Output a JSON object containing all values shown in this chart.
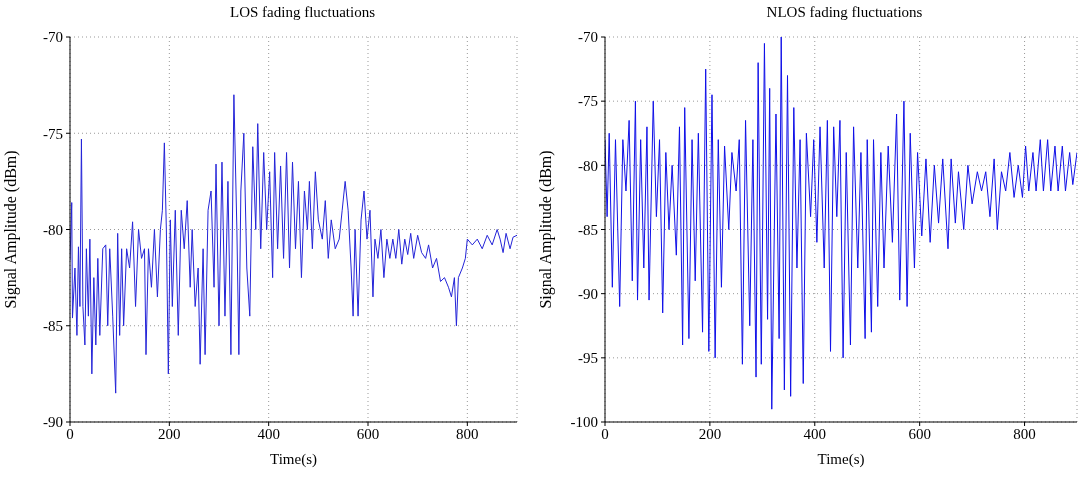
{
  "chart_data": [
    {
      "type": "line",
      "title": "LOS fading fluctuations",
      "xlabel": "Time(s)",
      "ylabel": "Signal Amplitude (dBm)",
      "xlim": [
        0,
        900
      ],
      "ylim": [
        -90,
        -70
      ],
      "xticks": [
        0,
        200,
        400,
        600,
        800
      ],
      "yticks": [
        -90,
        -85,
        -80,
        -75,
        -70
      ],
      "grid": true,
      "x": [
        0,
        3.5,
        5,
        10,
        14,
        17,
        20,
        23,
        26,
        30,
        33,
        37,
        40,
        44,
        48,
        52,
        56,
        60,
        66,
        72,
        76,
        80,
        86,
        92,
        96,
        100,
        104,
        108,
        114,
        120,
        126,
        132,
        138,
        144,
        150,
        153,
        158,
        164,
        170,
        176,
        182,
        186,
        190,
        194,
        198,
        202,
        206,
        212,
        218,
        224,
        230,
        236,
        242,
        246,
        252,
        258,
        262,
        268,
        272,
        278,
        284,
        290,
        294,
        300,
        306,
        312,
        318,
        324,
        330,
        336,
        340,
        344,
        350,
        356,
        362,
        368,
        374,
        378,
        384,
        390,
        396,
        402,
        408,
        412,
        418,
        424,
        430,
        436,
        442,
        448,
        454,
        460,
        466,
        472,
        478,
        482,
        488,
        494,
        500,
        508,
        514,
        520,
        526,
        534,
        542,
        548,
        554,
        560,
        566,
        570,
        574,
        580,
        586,
        592,
        598,
        604,
        610,
        614,
        620,
        626,
        632,
        638,
        644,
        650,
        656,
        662,
        668,
        674,
        680,
        686,
        692,
        700,
        708,
        716,
        722,
        730,
        738,
        746,
        754,
        762,
        768,
        774,
        778,
        782,
        790,
        796,
        800,
        810,
        820,
        830,
        840,
        850,
        860,
        866,
        872,
        878,
        886,
        892,
        900
      ],
      "series": [
        {
          "color": "#2424d8",
          "values": [
            -81.6,
            -78.6,
            -84.6,
            -82,
            -85.5,
            -80.9,
            -84,
            -75.3,
            -84,
            -86,
            -81,
            -84.5,
            -80.5,
            -87.5,
            -82.5,
            -86,
            -81.5,
            -85.5,
            -81,
            -80.8,
            -85,
            -81,
            -84.5,
            -88.5,
            -80.2,
            -85.5,
            -81,
            -85,
            -81,
            -82,
            -79.6,
            -84,
            -80,
            -81.5,
            -81,
            -86.5,
            -81,
            -83,
            -80,
            -83.5,
            -80,
            -79,
            -75.5,
            -80,
            -87.5,
            -79.5,
            -84,
            -79,
            -85.5,
            -79,
            -81,
            -78.5,
            -83,
            -80,
            -84,
            -82,
            -87,
            -81,
            -86.5,
            -79,
            -78,
            -83,
            -76.6,
            -85,
            -76.5,
            -84.5,
            -77.5,
            -86.5,
            -73,
            -80,
            -86.5,
            -78,
            -75,
            -82,
            -84.5,
            -75.7,
            -80,
            -74.5,
            -81,
            -76,
            -80,
            -77,
            -82.5,
            -76,
            -81,
            -76.7,
            -81.5,
            -76,
            -82,
            -76.5,
            -81,
            -77.5,
            -82.5,
            -78,
            -80,
            -77.5,
            -81,
            -77,
            -79.5,
            -80.5,
            -78.5,
            -81.5,
            -79.5,
            -81,
            -80.5,
            -79,
            -77.5,
            -79,
            -82,
            -84.5,
            -80,
            -84.5,
            -79.5,
            -78,
            -80.5,
            -79,
            -83.5,
            -80.5,
            -81.5,
            -80,
            -82.5,
            -80.5,
            -81.5,
            -80.5,
            -81.5,
            -80,
            -81.8,
            -80.5,
            -81.3,
            -80.2,
            -81.5,
            -80.3,
            -81.2,
            -81.5,
            -80.8,
            -82,
            -81.5,
            -82.7,
            -82.5,
            -83,
            -83.5,
            -82.5,
            -85,
            -82.5,
            -82,
            -81.5,
            -80.5,
            -80.8,
            -80.5,
            -81,
            -80.3,
            -80.8,
            -80,
            -80.5,
            -81.2,
            -80.2,
            -81,
            -80.4,
            -80.3
          ]
        }
      ]
    },
    {
      "type": "line",
      "title": "NLOS fading fluctuations",
      "xlabel": "Time(s)",
      "ylabel": "Signal Amplitude (dBm)",
      "xlim": [
        0,
        900
      ],
      "ylim": [
        -100,
        -70
      ],
      "xticks": [
        0,
        200,
        400,
        600,
        800
      ],
      "yticks": [
        -100,
        -95,
        -90,
        -85,
        -80,
        -75,
        -70
      ],
      "grid": true,
      "x": [
        0,
        4,
        8,
        14,
        20,
        28,
        34,
        40,
        46,
        52,
        58,
        62,
        68,
        74,
        80,
        84,
        92,
        98,
        104,
        110,
        116,
        122,
        128,
        136,
        142,
        148,
        152,
        160,
        166,
        172,
        178,
        186,
        192,
        198,
        204,
        210,
        216,
        222,
        228,
        236,
        242,
        250,
        256,
        262,
        268,
        276,
        282,
        288,
        292,
        298,
        304,
        310,
        314,
        318,
        326,
        332,
        336,
        342,
        348,
        354,
        360,
        366,
        372,
        378,
        384,
        392,
        398,
        404,
        410,
        418,
        424,
        430,
        436,
        442,
        448,
        454,
        460,
        468,
        474,
        482,
        488,
        496,
        500,
        508,
        512,
        520,
        526,
        532,
        540,
        548,
        556,
        562,
        570,
        576,
        582,
        590,
        596,
        604,
        612,
        620,
        628,
        636,
        644,
        654,
        660,
        668,
        674,
        684,
        692,
        700,
        710,
        718,
        726,
        734,
        742,
        748,
        756,
        764,
        772,
        780,
        788,
        796,
        802,
        808,
        816,
        822,
        830,
        836,
        844,
        850,
        858,
        864,
        872,
        878,
        886,
        892,
        900
      ],
      "series": [
        {
          "color": "#1010e8",
          "values": [
            -78,
            -84,
            -77.5,
            -89.5,
            -78,
            -91,
            -78,
            -82,
            -76.5,
            -89,
            -75,
            -90.5,
            -78,
            -88,
            -77,
            -90.5,
            -75,
            -84,
            -78,
            -91.5,
            -79,
            -85,
            -80,
            -87,
            -77,
            -94,
            -75.5,
            -93.5,
            -78,
            -89,
            -77.5,
            -93,
            -72.5,
            -94.5,
            -74.5,
            -95,
            -78,
            -89.5,
            -78.5,
            -85,
            -79,
            -82,
            -78,
            -95.5,
            -76.5,
            -92.5,
            -78,
            -96.5,
            -72,
            -95.5,
            -70.5,
            -92,
            -74,
            -99,
            -76,
            -93.5,
            -70,
            -97.5,
            -73,
            -98,
            -75.5,
            -88,
            -78,
            -97,
            -77.5,
            -84,
            -78,
            -86,
            -77,
            -88,
            -76.5,
            -94.5,
            -77,
            -84,
            -76.5,
            -95,
            -79,
            -94,
            -77,
            -88,
            -79,
            -93.5,
            -78,
            -93,
            -78,
            -91,
            -79,
            -88,
            -78.5,
            -86,
            -76,
            -90.5,
            -75,
            -91,
            -77.5,
            -88,
            -79,
            -85.5,
            -79.5,
            -86,
            -80,
            -84.5,
            -79.5,
            -86.5,
            -79.5,
            -84.5,
            -80.5,
            -85,
            -80,
            -83,
            -80.5,
            -82,
            -80.5,
            -84,
            -79.5,
            -85,
            -80.5,
            -82,
            -79,
            -82.5,
            -80,
            -82.5,
            -78.5,
            -82,
            -79,
            -82,
            -78,
            -82,
            -78,
            -82,
            -78.5,
            -82,
            -78.5,
            -82,
            -79,
            -81.5,
            -79
          ]
        }
      ]
    }
  ]
}
